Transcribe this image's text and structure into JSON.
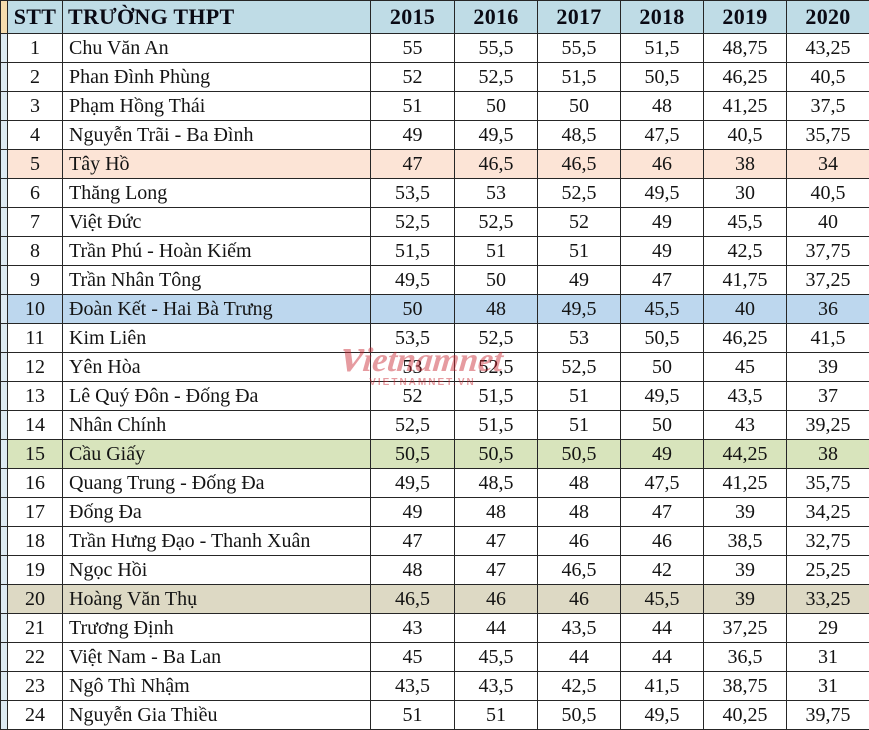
{
  "chart_data": {
    "type": "table",
    "columns": [
      "STT",
      "TRƯỜNG THPT",
      "2015",
      "2016",
      "2017",
      "2018",
      "2019",
      "2020"
    ],
    "rows": [
      {
        "cells": [
          "1",
          "Chu Văn An",
          "55",
          "55,5",
          "55,5",
          "51,5",
          "48,75",
          "43,25"
        ],
        "highlight": null
      },
      {
        "cells": [
          "2",
          "Phan Đình Phùng",
          "52",
          "52,5",
          "51,5",
          "50,5",
          "46,25",
          "40,5"
        ],
        "highlight": null
      },
      {
        "cells": [
          "3",
          "Phạm Hồng Thái",
          "51",
          "50",
          "50",
          "48",
          "41,25",
          "37,5"
        ],
        "highlight": null
      },
      {
        "cells": [
          "4",
          "Nguyễn Trãi - Ba Đình",
          "49",
          "49,5",
          "48,5",
          "47,5",
          "40,5",
          "35,75"
        ],
        "highlight": null
      },
      {
        "cells": [
          "5",
          "Tây Hồ",
          "47",
          "46,5",
          "46,5",
          "46",
          "38",
          "34"
        ],
        "highlight": "peach"
      },
      {
        "cells": [
          "6",
          "Thăng Long",
          "53,5",
          "53",
          "52,5",
          "49,5",
          "30",
          "40,5"
        ],
        "highlight": null
      },
      {
        "cells": [
          "7",
          "Việt Đức",
          "52,5",
          "52,5",
          "52",
          "49",
          "45,5",
          "40"
        ],
        "highlight": null
      },
      {
        "cells": [
          "8",
          "Trần Phú - Hoàn Kiếm",
          "51,5",
          "51",
          "51",
          "49",
          "42,5",
          "37,75"
        ],
        "highlight": null
      },
      {
        "cells": [
          "9",
          "Trần Nhân Tông",
          "49,5",
          "50",
          "49",
          "47",
          "41,75",
          "37,25"
        ],
        "highlight": null
      },
      {
        "cells": [
          "10",
          "Đoàn Kết - Hai Bà Trưng",
          "50",
          "48",
          "49,5",
          "45,5",
          "40",
          "36"
        ],
        "highlight": "blue"
      },
      {
        "cells": [
          "11",
          "Kim Liên",
          "53,5",
          "52,5",
          "53",
          "50,5",
          "46,25",
          "41,5"
        ],
        "highlight": null
      },
      {
        "cells": [
          "12",
          "Yên Hòa",
          "53",
          "52,5",
          "52,5",
          "50",
          "45",
          "39"
        ],
        "highlight": null
      },
      {
        "cells": [
          "13",
          "Lê Quý Đôn - Đống Đa",
          "52",
          "51,5",
          "51",
          "49,5",
          "43,5",
          "37"
        ],
        "highlight": null
      },
      {
        "cells": [
          "14",
          "Nhân Chính",
          "52,5",
          "51,5",
          "51",
          "50",
          "43",
          "39,25"
        ],
        "highlight": null
      },
      {
        "cells": [
          "15",
          "Cầu Giấy",
          "50,5",
          "50,5",
          "50,5",
          "49",
          "44,25",
          "38"
        ],
        "highlight": "green"
      },
      {
        "cells": [
          "16",
          "Quang Trung - Đống Đa",
          "49,5",
          "48,5",
          "48",
          "47,5",
          "41,25",
          "35,75"
        ],
        "highlight": null
      },
      {
        "cells": [
          "17",
          "Đống Đa",
          "49",
          "48",
          "48",
          "47",
          "39",
          "34,25"
        ],
        "highlight": null
      },
      {
        "cells": [
          "18",
          "Trần Hưng Đạo - Thanh Xuân",
          "47",
          "47",
          "46",
          "46",
          "38,5",
          "32,75"
        ],
        "highlight": null
      },
      {
        "cells": [
          "19",
          "Ngọc Hồi",
          "48",
          "47",
          "46,5",
          "42",
          "39",
          "25,25"
        ],
        "highlight": null
      },
      {
        "cells": [
          "20",
          "Hoàng Văn Thụ",
          "46,5",
          "46",
          "46",
          "45,5",
          "39",
          "33,25"
        ],
        "highlight": "tan"
      },
      {
        "cells": [
          "21",
          "Trương Định",
          "43",
          "44",
          "43,5",
          "44",
          "37,25",
          "29"
        ],
        "highlight": null
      },
      {
        "cells": [
          "22",
          "Việt Nam - Ba Lan",
          "45",
          "45,5",
          "44",
          "44",
          "36,5",
          "31"
        ],
        "highlight": null
      },
      {
        "cells": [
          "23",
          "Ngô Thì Nhậm",
          "43,5",
          "43,5",
          "42,5",
          "41,5",
          "38,75",
          "31"
        ],
        "highlight": null
      },
      {
        "cells": [
          "24",
          "Nguyễn Gia Thiều",
          "51",
          "51",
          "50,5",
          "49,5",
          "40,25",
          "39,75"
        ],
        "highlight": null
      }
    ]
  },
  "watermark": {
    "logo_text": "vietnamnet",
    "sub_text": "VIETNAMNET.VN"
  },
  "colors": {
    "header_bg": "#BFDCE6",
    "border": "#262626",
    "strip_header_bg": "#F6DCAE",
    "strip_body_bg": "#DDEAF2",
    "watermark_red": "#C8232E",
    "row_highlights": {
      "peach": "#FCE4D6",
      "blue": "#BDD7EE",
      "green": "#D8E4BC",
      "tan": "#DDD9C4"
    }
  }
}
